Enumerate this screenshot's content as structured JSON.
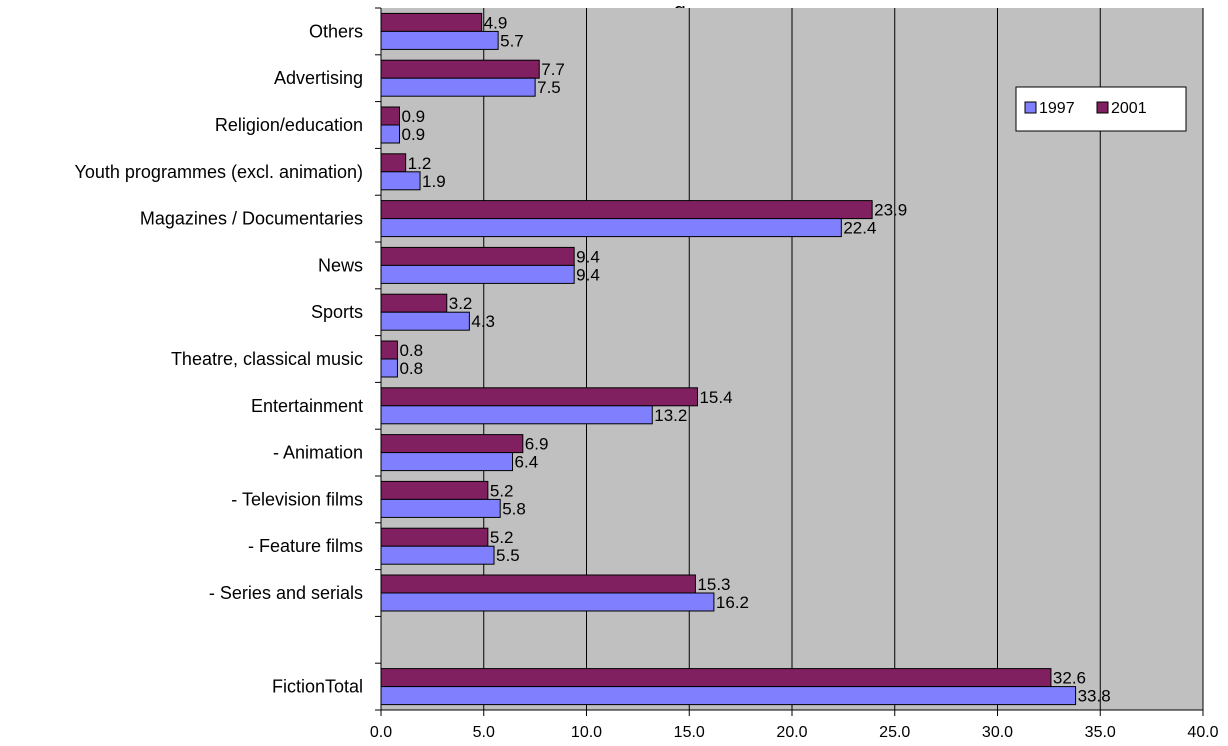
{
  "chart_data": {
    "type": "bar",
    "orientation": "horizontal",
    "title": "",
    "title_visible_fragment": ", ...........g",
    "xlabel": "",
    "ylabel": "",
    "xlim": [
      0,
      40
    ],
    "xticks": [
      0,
      5,
      10,
      15,
      20,
      25,
      30,
      35,
      40
    ],
    "xtick_labels": [
      "0.0",
      "5.0",
      "10.0",
      "15.0",
      "20.0",
      "25.0",
      "30.0",
      "35.0",
      "40.0"
    ],
    "grid": true,
    "plot_background": "#c0c0c0",
    "legend_position": "top-right",
    "categories": [
      "Others",
      "Advertising",
      "Religion/education",
      "Youth programmes (excl. animation)",
      "Magazines / Documentaries",
      "News",
      "Sports",
      "Theatre, classical music",
      "Entertainment",
      "- Animation",
      "- Television films",
      "- Feature films",
      "- Series and serials",
      "",
      "FictionTotal"
    ],
    "series": [
      {
        "name": "1997",
        "color": "#8080ff",
        "values": [
          5.7,
          7.5,
          0.9,
          1.9,
          22.4,
          9.4,
          4.3,
          0.8,
          13.2,
          6.4,
          5.8,
          5.5,
          16.2,
          null,
          33.8
        ],
        "labels": [
          "5.7",
          "7.5",
          "0.9",
          "1.9",
          "22.4",
          "9.4",
          "4.3",
          "0.8",
          "13.2",
          "6.4",
          "5.8",
          "5.5",
          "16.2",
          "",
          "33.8"
        ]
      },
      {
        "name": "2001",
        "color": "#802060",
        "values": [
          4.9,
          7.7,
          0.9,
          1.2,
          23.9,
          9.4,
          3.2,
          0.8,
          15.4,
          6.9,
          5.2,
          5.2,
          15.3,
          null,
          32.6
        ],
        "labels": [
          "4.9",
          "7.7",
          "0.9",
          "1.2",
          "23.9",
          "9.4",
          "3.2",
          "0.8",
          "15.4",
          "6.9",
          "5.2",
          "5.2",
          "15.3",
          "",
          "32.6"
        ]
      }
    ]
  }
}
